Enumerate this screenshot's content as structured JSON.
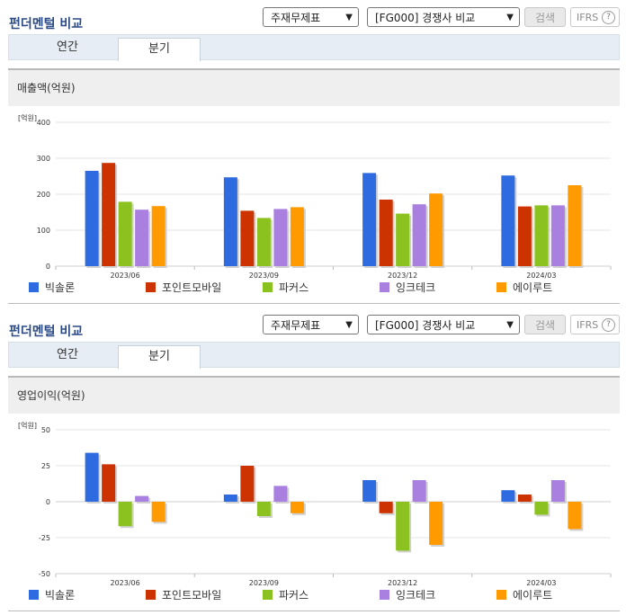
{
  "sections": [
    {
      "title": "펀더멘털 비교",
      "select1": "주재무제표",
      "select2": "[FG000] 경쟁사 비교",
      "search_label": "검색",
      "ifrs_label": "IFRS",
      "ifrs_help": "?",
      "tabs": [
        "연간",
        "분기"
      ],
      "active_tab": "분기",
      "panel_title": "매출액(억원)",
      "unit": "[억원]"
    },
    {
      "title": "펀더멘털 비교",
      "select1": "주재무제표",
      "select2": "[FG000] 경쟁사 비교",
      "search_label": "검색",
      "ifrs_label": "IFRS",
      "ifrs_help": "?",
      "tabs": [
        "연간",
        "분기"
      ],
      "active_tab": "분기",
      "panel_title": "영업이익(억원)",
      "unit": "[억원]"
    }
  ],
  "colors": {
    "빅솔론": "#2f6be0",
    "포인트모바일": "#cc3300",
    "파커스": "#8cc21f",
    "잉크테크": "#a97fe0",
    "에이루트": "#ff9a00"
  },
  "chart_data": [
    {
      "type": "bar",
      "title": "매출액(억원)",
      "ylabel": "[억원]",
      "categories": [
        "2023/06",
        "2023/09",
        "2023/12",
        "2024/03"
      ],
      "ylim": [
        0,
        400
      ],
      "yticks": [
        0,
        100,
        200,
        300,
        400
      ],
      "grid": true,
      "legend": "bottom",
      "series": [
        {
          "name": "빅솔론",
          "values": [
            265,
            247,
            259,
            252
          ]
        },
        {
          "name": "포인트모바일",
          "values": [
            287,
            154,
            185,
            166
          ]
        },
        {
          "name": "파커스",
          "values": [
            179,
            134,
            146,
            169
          ]
        },
        {
          "name": "잉크테크",
          "values": [
            157,
            159,
            172,
            169
          ]
        },
        {
          "name": "에이루트",
          "values": [
            167,
            164,
            202,
            225
          ]
        }
      ]
    },
    {
      "type": "bar",
      "title": "영업이익(억원)",
      "ylabel": "[억원]",
      "categories": [
        "2023/06",
        "2023/09",
        "2023/12",
        "2024/03"
      ],
      "ylim": [
        -50,
        50
      ],
      "yticks": [
        -50,
        -25,
        0,
        25,
        50
      ],
      "grid": true,
      "legend": "bottom",
      "series": [
        {
          "name": "빅솔론",
          "values": [
            34,
            5,
            15,
            8
          ]
        },
        {
          "name": "포인트모바일",
          "values": [
            26,
            25,
            -8,
            5
          ]
        },
        {
          "name": "파커스",
          "values": [
            -17,
            -10,
            -34,
            -9
          ]
        },
        {
          "name": "잉크테크",
          "values": [
            4,
            11,
            15,
            15
          ]
        },
        {
          "name": "에이루트",
          "values": [
            -14,
            -8,
            -30,
            -19
          ]
        }
      ]
    }
  ]
}
